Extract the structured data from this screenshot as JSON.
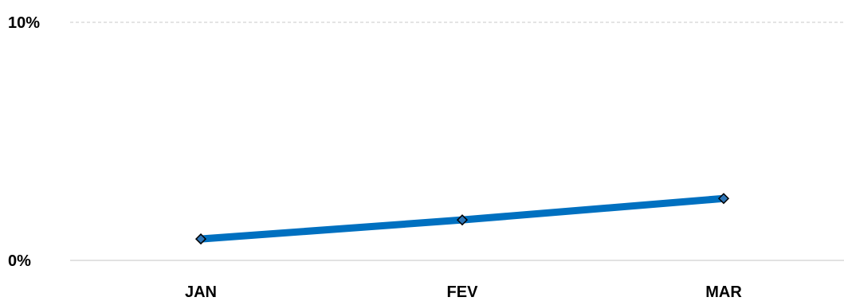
{
  "chart_data": {
    "type": "line",
    "categories": [
      "JAN",
      "FEV",
      "MAR"
    ],
    "series": [
      {
        "values": [
          0.009,
          0.017,
          0.026
        ]
      }
    ],
    "y_ticks": [
      "0%",
      "10%"
    ],
    "ylim": [
      0,
      0.1
    ],
    "grid": true,
    "legend": "none",
    "colors": {
      "line": "#0070C0",
      "marker_fill": "#2E75B6",
      "marker_stroke": "#000000",
      "grid": "#C8C8C8",
      "baseline": "#D9D9D9"
    }
  }
}
